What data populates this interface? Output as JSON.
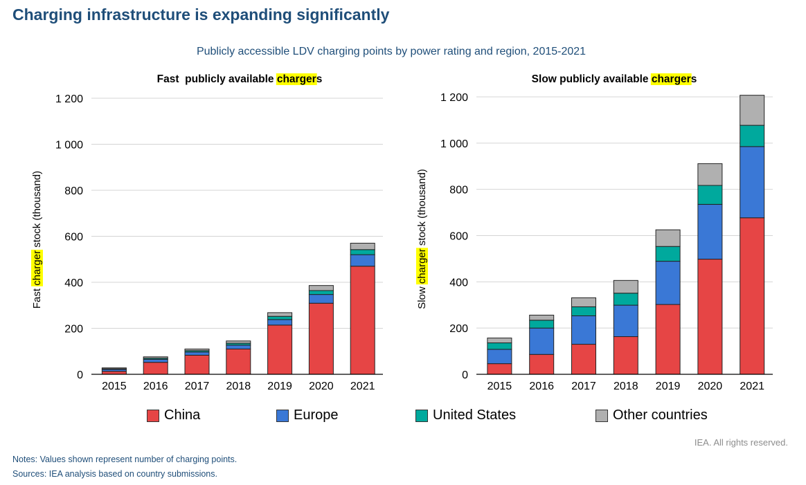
{
  "header": {
    "title": "Charging infrastructure is expanding significantly",
    "subtitle": "Publicly accessible LDV charging points by power rating and region, 2015-2021"
  },
  "colors": {
    "China": "#e64545",
    "Europe": "#3a78d6",
    "United States": "#00a99d",
    "Other countries": "#b0b0b0"
  },
  "chart_data": [
    {
      "type": "bar",
      "stacked": true,
      "title": "Fast  publicly available chargers",
      "title_highlight": "charger",
      "ylabel": "Fast charger stock (thousand)",
      "ylabel_highlight": "charger",
      "xlabel": "",
      "ylim": [
        0,
        1200
      ],
      "yticks": [
        0,
        200,
        400,
        600,
        800,
        1000,
        1200
      ],
      "ytick_labels": [
        "0",
        "200",
        "400",
        "600",
        "800",
        "1 000",
        "1 200"
      ],
      "grid": true,
      "categories": [
        "2015",
        "2016",
        "2017",
        "2018",
        "2019",
        "2020",
        "2021"
      ],
      "series": [
        {
          "name": "China",
          "values": [
            13,
            52,
            83,
            110,
            214,
            309,
            470
          ]
        },
        {
          "name": "Europe",
          "values": [
            8,
            13,
            14,
            17,
            24,
            38,
            50
          ]
        },
        {
          "name": "United States",
          "values": [
            3,
            5,
            6,
            8,
            14,
            17,
            22
          ]
        },
        {
          "name": "Other countries",
          "values": [
            4,
            6,
            7,
            10,
            16,
            22,
            28
          ]
        }
      ]
    },
    {
      "type": "bar",
      "stacked": true,
      "title": "Slow publicly available chargers",
      "title_highlight": "charger",
      "ylabel": "Slow charger stock (thousand)",
      "ylabel_highlight": "charger",
      "xlabel": "",
      "ylim": [
        0,
        1200
      ],
      "yticks": [
        0,
        200,
        400,
        600,
        800,
        1000,
        1200
      ],
      "ytick_labels": [
        "0",
        "200",
        "400",
        "600",
        "800",
        "1 000",
        "1 200"
      ],
      "grid": true,
      "categories": [
        "2015",
        "2016",
        "2017",
        "2018",
        "2019",
        "2020",
        "2021"
      ],
      "series": [
        {
          "name": "China",
          "values": [
            46,
            86,
            130,
            163,
            302,
            498,
            677
          ]
        },
        {
          "name": "Europe",
          "values": [
            62,
            114,
            123,
            136,
            187,
            237,
            308
          ]
        },
        {
          "name": "United States",
          "values": [
            28,
            34,
            39,
            52,
            64,
            82,
            92
          ]
        },
        {
          "name": "Other countries",
          "values": [
            21,
            22,
            39,
            55,
            72,
            94,
            130
          ]
        }
      ]
    }
  ],
  "legend": {
    "items": [
      "China",
      "Europe",
      "United States",
      "Other countries"
    ]
  },
  "footer": {
    "rights": "IEA. All rights reserved.",
    "notes": "Notes: Values shown represent number of charging points.",
    "sources": "Sources: IEA analysis based on country submissions."
  }
}
